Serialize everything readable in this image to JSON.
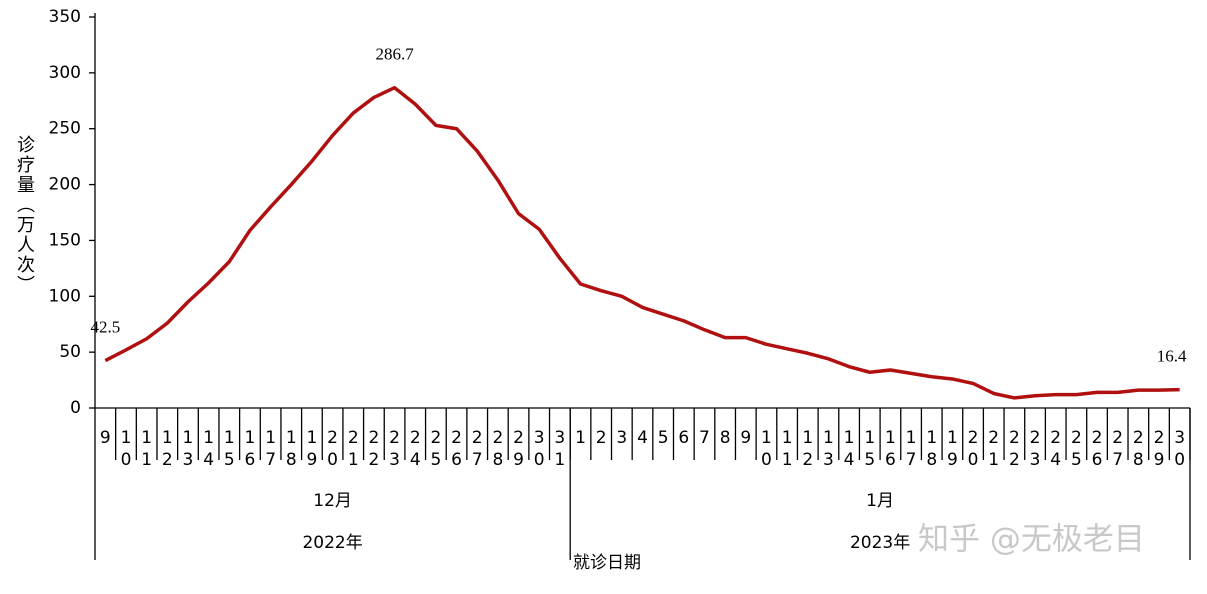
{
  "chart_data": {
    "type": "line",
    "y_label": "诊疗量（万人次）",
    "x_label": "就诊日期",
    "watermark": "知乎 @无极老目",
    "categories": [
      "9",
      "10",
      "11",
      "12",
      "13",
      "14",
      "15",
      "16",
      "17",
      "18",
      "19",
      "20",
      "21",
      "22",
      "23",
      "24",
      "25",
      "26",
      "27",
      "28",
      "29",
      "30",
      "31",
      "1",
      "2",
      "3",
      "4",
      "5",
      "6",
      "7",
      "8",
      "9",
      "10",
      "11",
      "12",
      "13",
      "14",
      "15",
      "16",
      "17",
      "18",
      "19",
      "20",
      "21",
      "22",
      "23",
      "24",
      "25",
      "26",
      "27",
      "28",
      "29",
      "30"
    ],
    "x_groups": [
      {
        "month": "12月",
        "year": "2022年"
      },
      {
        "month": "1月",
        "year": "2023年"
      }
    ],
    "series": [
      {
        "color": "#b01010",
        "values": [
          42.5,
          52,
          62,
          76,
          95,
          112,
          131,
          159,
          180,
          200,
          221,
          244,
          264,
          278,
          286.7,
          272,
          253,
          250,
          230,
          204,
          174,
          160,
          134,
          111,
          105,
          100,
          90,
          84,
          78,
          70,
          63,
          63,
          57,
          53,
          49,
          44,
          37,
          32,
          34,
          31,
          28,
          26,
          22,
          13,
          9,
          11,
          12,
          12,
          14,
          14,
          16,
          16,
          16.4
        ],
        "value_labels": [
          "42.5",
          null,
          null,
          null,
          null,
          null,
          null,
          null,
          null,
          null,
          null,
          null,
          null,
          null,
          "286.7",
          null,
          null,
          null,
          null,
          null,
          null,
          null,
          null,
          null,
          null,
          null,
          null,
          null,
          null,
          null,
          null,
          null,
          null,
          null,
          null,
          null,
          null,
          null,
          null,
          null,
          null,
          null,
          null,
          null,
          null,
          null,
          null,
          null,
          null,
          null,
          null,
          null,
          "16.4"
        ]
      }
    ],
    "ylim": [
      0,
      350
    ],
    "yticks": [
      0,
      50,
      100,
      150,
      200,
      250,
      300,
      350
    ],
    "grid": false
  }
}
